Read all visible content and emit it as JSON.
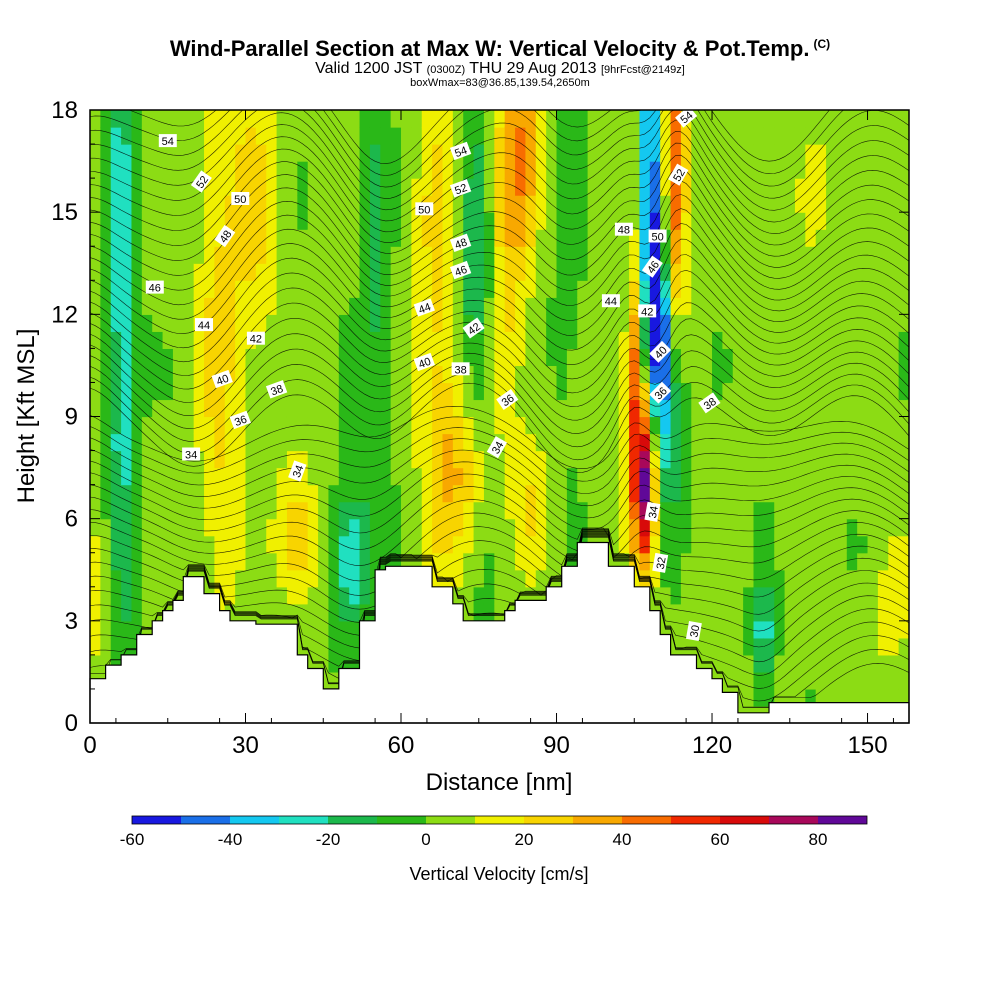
{
  "title": "Wind-Parallel Section at Max W: Vertical Velocity & Pot.Temp.",
  "title_suffix": "(C)",
  "subtitle": {
    "valid": "Valid 1200 JST",
    "utc": "(0300Z)",
    "date": "THU 29 Aug 2013",
    "forecast": "[9hrFcst@2149z]"
  },
  "subtitle2": "boxWmax=83@36.85,139.54,2650m",
  "chart_data": {
    "type": "heatmap",
    "xlabel": "Distance [nm]",
    "ylabel": "Height [Kft MSL]",
    "xlim": [
      0,
      158
    ],
    "ylim": [
      0,
      18
    ],
    "x_ticks": [
      0,
      30,
      60,
      90,
      120,
      150
    ],
    "y_ticks": [
      0,
      3,
      6,
      9,
      12,
      15,
      18
    ],
    "grid": false,
    "colorbar": {
      "label": "Vertical Velocity [cm/s]",
      "ticks": [
        -60,
        -40,
        -20,
        0,
        20,
        40,
        60,
        80
      ],
      "bounds": [
        -60,
        -50,
        -40,
        -30,
        -20,
        -10,
        0,
        10,
        20,
        30,
        40,
        50,
        60,
        70,
        80,
        90
      ],
      "colors": [
        "#1818e0",
        "#1a6fe8",
        "#14c8f0",
        "#20e0c0",
        "#1cb84c",
        "#2ab818",
        "#8cdc14",
        "#f0f000",
        "#f8d400",
        "#f8a800",
        "#f86c00",
        "#f02800",
        "#d80a0a",
        "#a8085a",
        "#600898"
      ]
    },
    "terrain_kft": {
      "x": [
        0,
        3,
        3,
        6,
        6,
        9,
        9,
        12,
        12,
        14,
        14,
        16,
        16,
        18,
        18,
        22,
        22,
        25,
        25,
        27,
        27,
        29,
        29,
        32,
        32,
        40,
        40,
        42,
        42,
        45,
        45,
        48,
        48,
        52,
        52,
        55,
        55,
        57,
        57,
        66,
        66,
        70,
        70,
        72,
        72,
        75,
        75,
        78,
        78,
        80,
        80,
        82,
        82,
        85,
        85,
        88,
        88,
        91,
        91,
        94,
        94,
        97,
        97,
        100,
        100,
        105,
        105,
        108,
        108,
        110,
        110,
        112,
        112,
        114,
        114,
        117,
        117,
        120,
        120,
        122,
        122,
        125,
        125,
        128,
        128,
        131,
        131,
        134,
        134,
        137,
        137,
        158
      ],
      "height": [
        1.3,
        1.3,
        1.7,
        1.7,
        2.0,
        2.0,
        2.6,
        2.6,
        3.0,
        3.0,
        3.3,
        3.3,
        3.6,
        3.6,
        4.3,
        4.3,
        3.8,
        3.8,
        3.3,
        3.3,
        3.0,
        3.0,
        3.0,
        3.0,
        2.9,
        2.9,
        2.0,
        2.0,
        1.6,
        1.6,
        1.0,
        1.0,
        1.6,
        1.6,
        3.0,
        3.0,
        4.5,
        4.5,
        4.6,
        4.6,
        4.0,
        4.0,
        3.5,
        3.5,
        3.0,
        3.0,
        3.0,
        3.0,
        3.0,
        3.0,
        3.3,
        3.3,
        3.6,
        3.6,
        3.6,
        3.6,
        4.0,
        4.0,
        4.6,
        4.6,
        5.3,
        5.3,
        5.3,
        5.3,
        4.6,
        4.6,
        4.0,
        4.0,
        3.3,
        3.3,
        2.6,
        2.6,
        2.0,
        2.0,
        2.0,
        2.0,
        1.6,
        1.6,
        1.3,
        1.3,
        0.9,
        0.9,
        0.3,
        0.3,
        0.3,
        0.3,
        0.6,
        0.6,
        0.6,
        0.6,
        0.6,
        0.6
      ]
    },
    "velocity_features": [
      {
        "x": 6,
        "y": 11,
        "sx": 2,
        "sy": 9,
        "value": -30
      },
      {
        "x": 3,
        "y": 4,
        "sx": 3,
        "sy": 2,
        "value": 15
      },
      {
        "x": 25,
        "y": 11,
        "sx": 3,
        "sy": 6,
        "value": 20
      },
      {
        "x": 32,
        "y": 15,
        "sx": 3,
        "sy": 3,
        "value": 20
      },
      {
        "x": 40,
        "y": 5.5,
        "sx": 3,
        "sy": 1.5,
        "value": 25
      },
      {
        "x": 50,
        "y": 4.8,
        "sx": 2.5,
        "sy": 1.5,
        "value": -35
      },
      {
        "x": 55,
        "y": 13,
        "sx": 2,
        "sy": 6,
        "value": -15
      },
      {
        "x": 67,
        "y": 13,
        "sx": 3,
        "sy": 5,
        "value": 20
      },
      {
        "x": 72,
        "y": 7.4,
        "sx": 4,
        "sy": 2,
        "value": 30
      },
      {
        "x": 75,
        "y": 12.5,
        "sx": 3,
        "sy": 5,
        "value": -25
      },
      {
        "x": 80,
        "y": 15,
        "sx": 3,
        "sy": 4,
        "value": 30
      },
      {
        "x": 84,
        "y": 17,
        "sx": 2,
        "sy": 2,
        "value": 25
      },
      {
        "x": 85,
        "y": 6.5,
        "sx": 2.5,
        "sy": 1.5,
        "value": 15
      },
      {
        "x": 92,
        "y": 14,
        "sx": 2,
        "sy": 4,
        "value": -10
      },
      {
        "x": 105,
        "y": 10,
        "sx": 1.3,
        "sy": 2.5,
        "value": 40
      },
      {
        "x": 107,
        "y": 7,
        "sx": 1.5,
        "sy": 1.8,
        "value": 75
      },
      {
        "x": 108,
        "y": 15.5,
        "sx": 1.2,
        "sy": 3.5,
        "value": -60
      },
      {
        "x": 110,
        "y": 11.5,
        "sx": 1.5,
        "sy": 2,
        "value": -55
      },
      {
        "x": 113,
        "y": 16,
        "sx": 1.5,
        "sy": 3,
        "value": 50
      },
      {
        "x": 112,
        "y": 9,
        "sx": 2,
        "sy": 2,
        "value": -25
      },
      {
        "x": 130,
        "y": 2.5,
        "sx": 1.5,
        "sy": 1.2,
        "value": -30
      },
      {
        "x": 155,
        "y": 3,
        "sx": 3,
        "sy": 2,
        "value": 10
      },
      {
        "x": 140,
        "y": 15,
        "sx": 6,
        "sy": 4,
        "value": 5
      }
    ],
    "contour_labels": [
      {
        "text": "54",
        "x": 15,
        "y": 17.1,
        "angle": 0
      },
      {
        "text": "52",
        "x": 21.5,
        "y": 15.9,
        "angle": -55
      },
      {
        "text": "50",
        "x": 29,
        "y": 15.4,
        "angle": 0
      },
      {
        "text": "48",
        "x": 26,
        "y": 14.3,
        "angle": -55
      },
      {
        "text": "46",
        "x": 12.5,
        "y": 12.8,
        "angle": 0
      },
      {
        "text": "44",
        "x": 22,
        "y": 11.7,
        "angle": 0
      },
      {
        "text": "42",
        "x": 32,
        "y": 11.3,
        "angle": 0
      },
      {
        "text": "40",
        "x": 25.5,
        "y": 10.1,
        "angle": -20
      },
      {
        "text": "38",
        "x": 36,
        "y": 9.8,
        "angle": -20
      },
      {
        "text": "36",
        "x": 29,
        "y": 8.9,
        "angle": -20
      },
      {
        "text": "34",
        "x": 19.5,
        "y": 7.9,
        "angle": 0
      },
      {
        "text": "34",
        "x": 40,
        "y": 7.4,
        "angle": -70
      },
      {
        "text": "54",
        "x": 71.5,
        "y": 16.8,
        "angle": -20
      },
      {
        "text": "52",
        "x": 71.5,
        "y": 15.7,
        "angle": -20
      },
      {
        "text": "50",
        "x": 64.5,
        "y": 15.1,
        "angle": 0
      },
      {
        "text": "48",
        "x": 71.5,
        "y": 14.1,
        "angle": -20
      },
      {
        "text": "46",
        "x": 71.5,
        "y": 13.3,
        "angle": -20
      },
      {
        "text": "44",
        "x": 64.5,
        "y": 12.2,
        "angle": -20
      },
      {
        "text": "42",
        "x": 74,
        "y": 11.6,
        "angle": -35
      },
      {
        "text": "40",
        "x": 64.5,
        "y": 10.6,
        "angle": -20
      },
      {
        "text": "38",
        "x": 71.5,
        "y": 10.4,
        "angle": 0
      },
      {
        "text": "36",
        "x": 80.5,
        "y": 9.5,
        "angle": -35
      },
      {
        "text": "34",
        "x": 78.5,
        "y": 8.1,
        "angle": -60
      },
      {
        "text": "48",
        "x": 103,
        "y": 14.5,
        "angle": 0
      },
      {
        "text": "50",
        "x": 109.5,
        "y": 14.3,
        "angle": 0
      },
      {
        "text": "46",
        "x": 108.5,
        "y": 13.4,
        "angle": -55
      },
      {
        "text": "44",
        "x": 100.5,
        "y": 12.4,
        "angle": 0
      },
      {
        "text": "42",
        "x": 107.5,
        "y": 12.1,
        "angle": 0
      },
      {
        "text": "40",
        "x": 110,
        "y": 10.9,
        "angle": -45
      },
      {
        "text": "38",
        "x": 119.5,
        "y": 9.4,
        "angle": -35
      },
      {
        "text": "36",
        "x": 110,
        "y": 9.7,
        "angle": -45
      },
      {
        "text": "34",
        "x": 108.5,
        "y": 6.2,
        "angle": -80
      },
      {
        "text": "32",
        "x": 110,
        "y": 4.7,
        "angle": -80
      },
      {
        "text": "54",
        "x": 115,
        "y": 17.8,
        "angle": -40
      },
      {
        "text": "52",
        "x": 113.5,
        "y": 16.1,
        "angle": -60
      },
      {
        "text": "30",
        "x": 116.5,
        "y": 2.7,
        "angle": -80
      }
    ]
  }
}
